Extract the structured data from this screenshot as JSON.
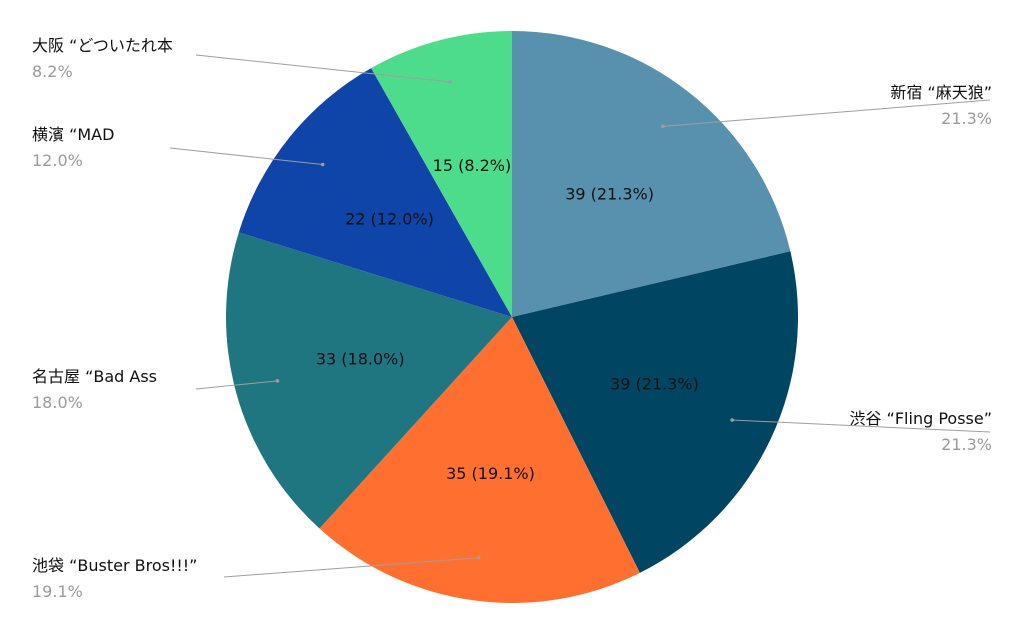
{
  "chart_data": {
    "type": "pie",
    "title": "",
    "categories": [
      "新宿 “麻天狼”",
      "渋谷 “Fling Posse”",
      "池袋 “Buster Bros!!!”",
      "名古屋 “Bad Ass",
      "横濱 “MAD",
      "大阪 “どついたれ本"
    ],
    "values": [
      39,
      39,
      35,
      33,
      22,
      15
    ],
    "percent_labels": [
      "21.3%",
      "21.3%",
      "19.1%",
      "18.0%",
      "12.0%",
      "8.2%"
    ],
    "slice_labels": [
      "39 (21.3%)",
      "39 (21.3%)",
      "35 (19.1%)",
      "33 (18.0%)",
      "22 (12.0%)",
      "15 (8.2%)"
    ],
    "colors": [
      "#5891ad",
      "#004561",
      "#ff7030",
      "#1f7681",
      "#0f44a8",
      "#4cdc8b"
    ],
    "start_angle_deg": 0,
    "direction": "clockwise",
    "legend_placement": "outside with leader lines"
  }
}
